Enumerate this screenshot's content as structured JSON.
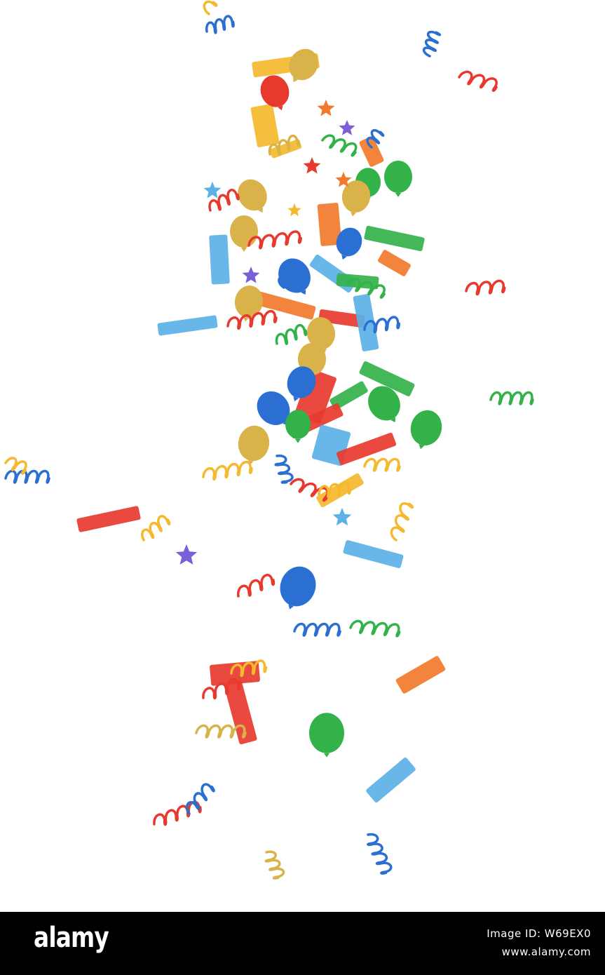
{
  "watermark": {
    "brand": "alamy",
    "image_id": "Image ID: W69EX0",
    "site_url": "www.alamy.com"
  },
  "colors": {
    "background": "#ffffff",
    "bar": "#000000",
    "confetti_red": "#e8392f",
    "confetti_orange": "#f27a2e",
    "confetti_yellow": "#f5b82e",
    "confetti_gold": "#d9b24a",
    "confetti_green": "#34b24a",
    "confetti_blue": "#2a6fd1",
    "confetti_lightblue": "#5cb1e6",
    "confetti_purple": "#7a5fd6"
  },
  "scene": {
    "subject": "confetti-pieces",
    "piece_kinds": [
      "balloon",
      "star",
      "streamer",
      "happy-birthday-strip"
    ]
  }
}
